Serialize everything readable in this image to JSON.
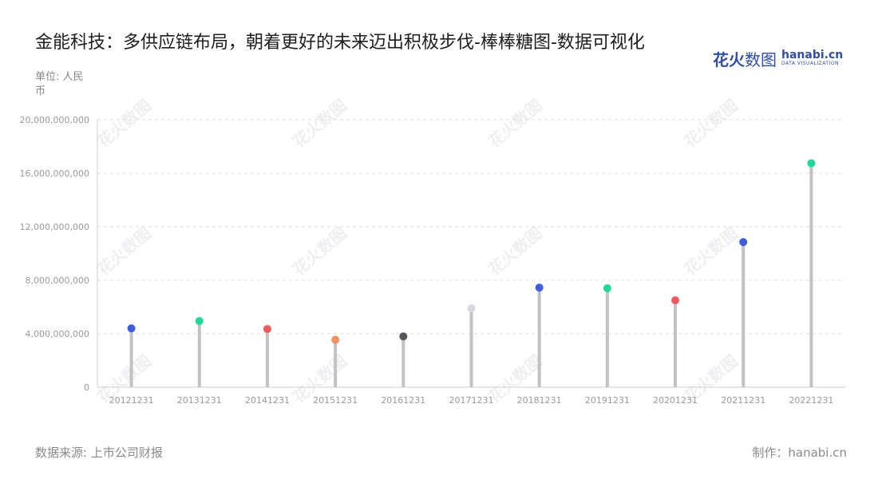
{
  "header": {
    "title": "金能科技：多供应链布局，朝着更好的未来迈出积极步伐-棒棒糖图-数据可视化",
    "unit": "单位: 人民币"
  },
  "logo": {
    "mark_bold": "花火",
    "mark_thin": "数图",
    "brand": "hanabi.cn",
    "sub": "DATA VISUALIZATION"
  },
  "footer": {
    "source": "数据来源: 上市公司财报",
    "credit": "制作：hanabi.cn"
  },
  "watermark": {
    "text": "花火数图"
  },
  "chart_data": {
    "type": "lollipop",
    "categories": [
      "20121231",
      "20131231",
      "20141231",
      "20151231",
      "20161231",
      "20171231",
      "20181231",
      "20191231",
      "20201231",
      "20211231",
      "20221231"
    ],
    "values": [
      4400000000,
      4950000000,
      4350000000,
      3550000000,
      3800000000,
      5900000000,
      7450000000,
      7400000000,
      6500000000,
      10850000000,
      16750000000
    ],
    "colors": [
      "#3d5de0",
      "#1fd99a",
      "#f0585a",
      "#f4915c",
      "#55565e",
      "#d8d8e2",
      "#3d5de0",
      "#1fd99a",
      "#f0585a",
      "#3d5de0",
      "#1fd99a"
    ],
    "stem_color": "#c2c2c2",
    "ylim": [
      0,
      20000000000
    ],
    "y_ticks": [
      0,
      4000000000,
      8000000000,
      12000000000,
      16000000000,
      20000000000
    ],
    "y_tick_labels": [
      "0",
      "4,000,000,000",
      "8,000,000,000",
      "12,000,000,000",
      "16,000,000,000",
      "20,000,000,000"
    ],
    "grid": true
  }
}
